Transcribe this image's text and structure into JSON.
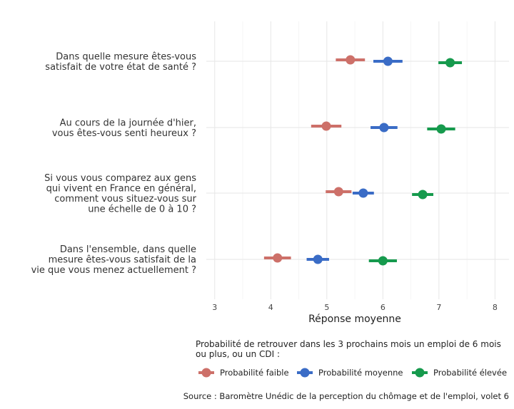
{
  "chart_data": {
    "type": "scatter",
    "questions": [
      {
        "lines": [
          "Dans quelle mesure êtes-vous",
          "satisfait de votre état de santé ?"
        ]
      },
      {
        "lines": [
          "Au cours de la journée d'hier,",
          "vous êtes-vous senti heureux ?"
        ]
      },
      {
        "lines": [
          "Si vous vous comparez aux gens",
          "qui vivent en France en général,",
          "comment vous situez-vous sur",
          "une échelle de 0 à 10 ?"
        ]
      },
      {
        "lines": [
          "Dans l'ensemble, dans quelle",
          "mesure êtes-vous satisfait de la",
          "vie que vous menez actuellement ?"
        ]
      }
    ],
    "series": [
      {
        "name": "Probabilité faible",
        "color": "#CD7069",
        "values": [
          5.42,
          4.99,
          5.21,
          4.12
        ],
        "ci": [
          [
            5.16,
            5.68
          ],
          [
            4.72,
            5.26
          ],
          [
            4.98,
            5.44
          ],
          [
            3.88,
            4.36
          ]
        ]
      },
      {
        "name": "Probabilité moyenne",
        "color": "#3A6CC6",
        "values": [
          6.09,
          6.02,
          5.65,
          4.84
        ],
        "ci": [
          [
            5.83,
            6.35
          ],
          [
            5.78,
            6.26
          ],
          [
            5.46,
            5.84
          ],
          [
            4.64,
            5.04
          ]
        ]
      },
      {
        "name": "Probabilité élevée",
        "color": "#169A4D",
        "values": [
          7.2,
          7.04,
          6.71,
          6.0
        ],
        "ci": [
          [
            6.99,
            7.41
          ],
          [
            6.79,
            7.29
          ],
          [
            6.52,
            6.9
          ],
          [
            5.75,
            6.25
          ]
        ]
      }
    ],
    "xlim": [
      2.85,
      8.25
    ],
    "xticks": [
      3,
      4,
      5,
      6,
      7,
      8
    ],
    "xlabel": "Réponse moyenne",
    "grid": true,
    "legend": {
      "title_lines": [
        "Probabilité de retrouver dans les 3 prochains mois un emploi de 6 mois",
        "ou plus, ou un CDI :"
      ],
      "position": "bottom"
    },
    "source": "Source : Baromètre Unédic de la perception du chômage et de l'emploi, volet 6"
  }
}
